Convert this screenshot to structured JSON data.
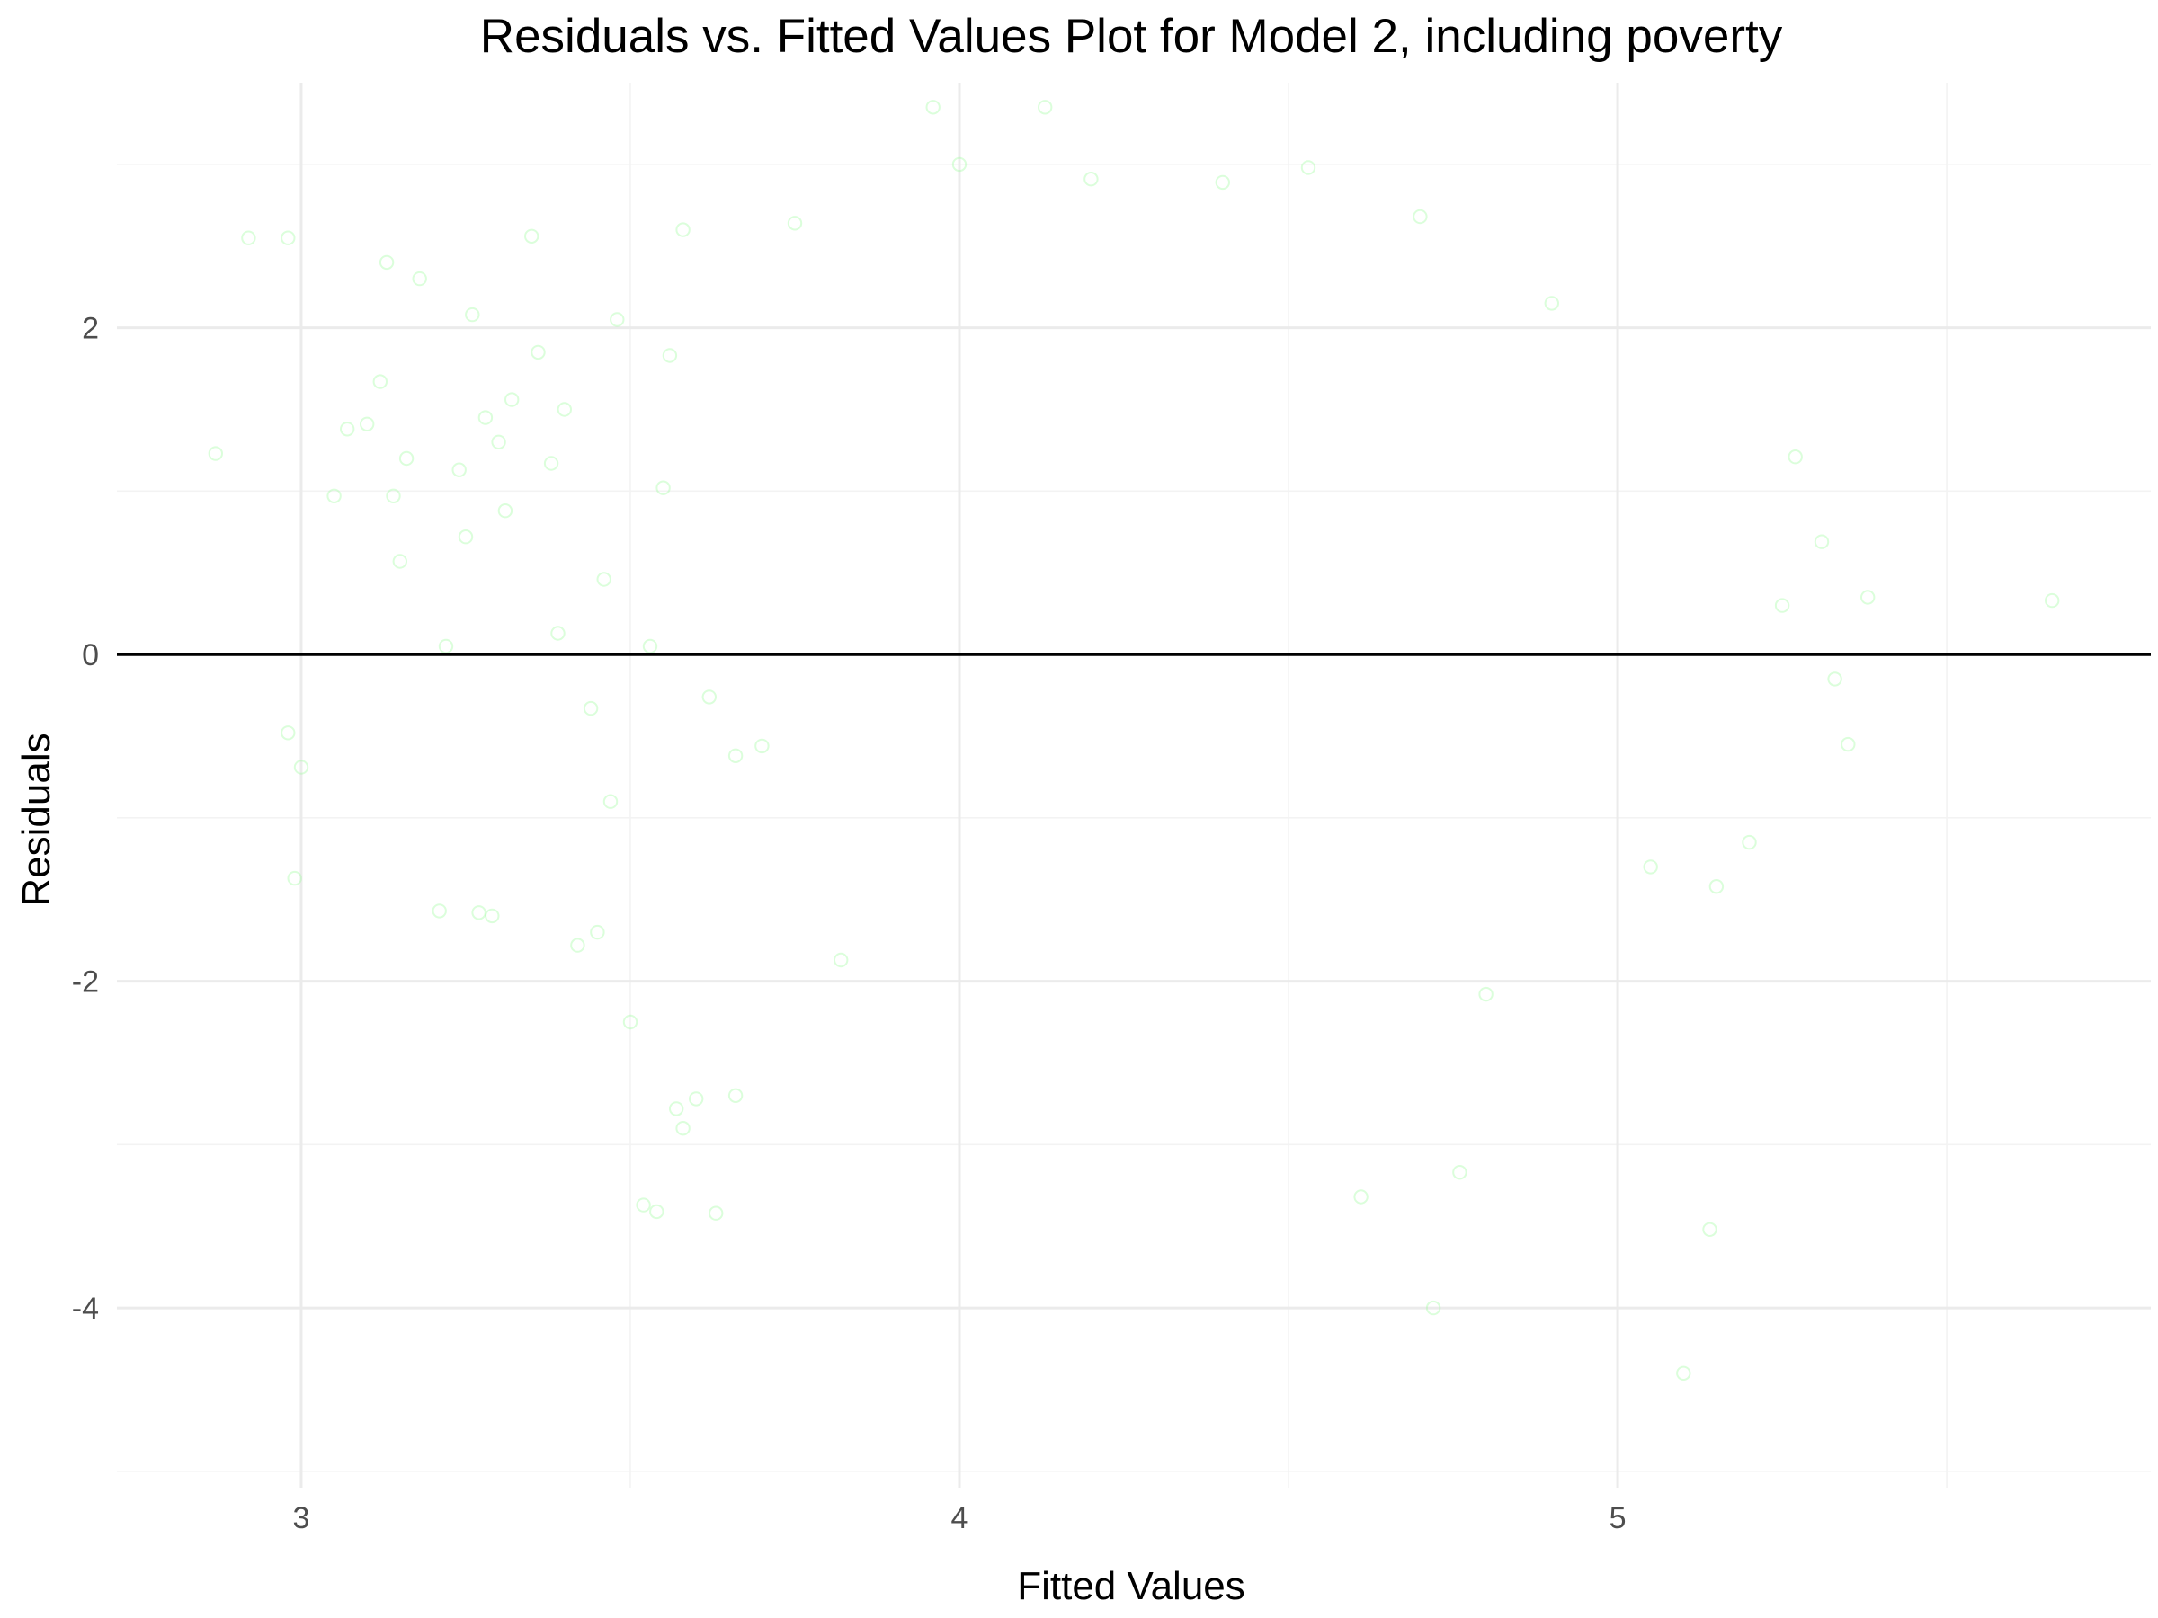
{
  "chart_data": {
    "type": "scatter",
    "title": "Residuals vs. Fitted Values Plot for Model 2, including poverty",
    "xlabel": "Fitted Values",
    "ylabel": "Residuals",
    "xlim": [
      2.72,
      5.81
    ],
    "ylim": [
      -5.1,
      3.5
    ],
    "x_ticks": [
      3,
      4,
      5
    ],
    "x_tick_labels": [
      "3",
      "4",
      "5"
    ],
    "y_ticks": [
      -4,
      -2,
      0,
      2
    ],
    "y_tick_labels": [
      "-4",
      "-2",
      "0",
      "2"
    ],
    "x_minor_ticks": [
      3.5,
      4.5,
      5.5
    ],
    "y_minor_ticks": [
      -5,
      -3,
      -1,
      1,
      3
    ],
    "reference_line": {
      "y": 0,
      "color": "#000000"
    },
    "grid": true,
    "legend": "none",
    "point_style": {
      "shape": "open-circle",
      "color": "#98fb98",
      "alpha": 0.35
    },
    "series": [
      {
        "points": [
          [
            2.87,
            1.23
          ],
          [
            2.92,
            2.55
          ],
          [
            2.98,
            2.55
          ],
          [
            2.98,
            -0.48
          ],
          [
            2.99,
            -1.37
          ],
          [
            3.0,
            -0.69
          ],
          [
            3.05,
            0.97
          ],
          [
            3.07,
            1.38
          ],
          [
            3.1,
            1.41
          ],
          [
            3.12,
            1.67
          ],
          [
            3.13,
            2.4
          ],
          [
            3.14,
            0.97
          ],
          [
            3.15,
            0.57
          ],
          [
            3.18,
            2.3
          ],
          [
            3.22,
            0.05
          ],
          [
            3.26,
            2.08
          ],
          [
            3.27,
            -1.58
          ],
          [
            3.29,
            -1.6
          ],
          [
            3.3,
            1.3
          ],
          [
            3.32,
            1.56
          ],
          [
            3.38,
            1.17
          ],
          [
            3.39,
            0.13
          ],
          [
            3.4,
            1.5
          ],
          [
            3.45,
            -1.7
          ],
          [
            3.48,
            2.05
          ],
          [
            3.5,
            -2.25
          ],
          [
            3.53,
            0.05
          ],
          [
            3.56,
            1.83
          ],
          [
            3.58,
            2.6
          ],
          [
            3.6,
            -2.72
          ],
          [
            3.62,
            -0.26
          ],
          [
            3.66,
            -0.62
          ],
          [
            3.7,
            -0.56
          ],
          [
            3.75,
            2.64
          ],
          [
            3.82,
            -1.87
          ],
          [
            3.96,
            3.35
          ],
          [
            4.0,
            3.0
          ],
          [
            4.13,
            3.35
          ],
          [
            4.2,
            2.91
          ],
          [
            4.4,
            2.89
          ],
          [
            4.53,
            2.98
          ],
          [
            4.61,
            -3.32
          ],
          [
            4.7,
            2.68
          ],
          [
            4.72,
            -4.0
          ],
          [
            4.76,
            -3.17
          ],
          [
            4.8,
            -2.08
          ],
          [
            4.9,
            2.15
          ],
          [
            5.05,
            -1.3
          ],
          [
            5.1,
            -4.4
          ],
          [
            5.14,
            -3.52
          ],
          [
            5.15,
            -1.42
          ],
          [
            5.2,
            -1.15
          ],
          [
            5.25,
            0.3
          ],
          [
            5.27,
            1.21
          ],
          [
            5.31,
            0.69
          ],
          [
            5.33,
            -0.15
          ],
          [
            5.35,
            -0.55
          ],
          [
            5.38,
            0.35
          ],
          [
            5.66,
            0.33
          ],
          [
            3.16,
            1.2
          ],
          [
            3.21,
            -1.57
          ],
          [
            3.25,
            0.72
          ],
          [
            3.35,
            2.56
          ],
          [
            3.42,
            -1.78
          ],
          [
            3.47,
            -0.9
          ],
          [
            3.52,
            -3.37
          ],
          [
            3.54,
            -3.41
          ],
          [
            3.57,
            -2.78
          ],
          [
            3.46,
            0.46
          ],
          [
            3.44,
            -0.33
          ],
          [
            3.36,
            1.85
          ],
          [
            3.31,
            0.88
          ],
          [
            3.28,
            1.45
          ],
          [
            3.24,
            1.13
          ],
          [
            3.55,
            1.02
          ],
          [
            3.58,
            -2.9
          ],
          [
            3.63,
            -3.42
          ],
          [
            3.66,
            -2.7
          ]
        ]
      }
    ]
  }
}
